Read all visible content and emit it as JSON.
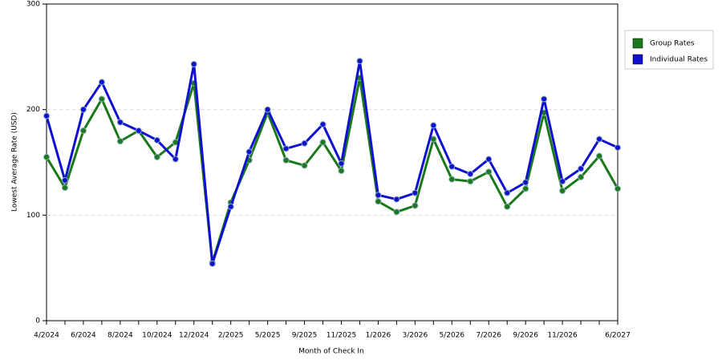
{
  "chart_data": {
    "type": "line",
    "x_label": "Month of Check In",
    "y_label": "Lowest Average Rate (USD)",
    "categories": [
      "4/2024",
      null,
      "6/2024",
      null,
      "8/2024",
      null,
      "10/2024",
      null,
      "12/2024",
      null,
      "2/2025",
      null,
      "5/2025",
      null,
      "9/2025",
      null,
      "11/2025",
      null,
      "1/2026",
      null,
      "3/2026",
      null,
      "5/2026",
      null,
      "7/2026",
      null,
      "9/2026",
      null,
      "11/2026",
      null,
      null,
      "6/2027"
    ],
    "series": [
      {
        "name": "Group Rates",
        "color": "#1a7a1a",
        "values": [
          155,
          126,
          180,
          210,
          170,
          180,
          155,
          169,
          225,
          55,
          112,
          152,
          197,
          152,
          147,
          169,
          142,
          230,
          113,
          103,
          109,
          172,
          134,
          132,
          141,
          108,
          125,
          197,
          123,
          136,
          156,
          125
        ]
      },
      {
        "name": "Individual Rates",
        "color": "#1010d0",
        "values": [
          194,
          133,
          200,
          226,
          188,
          180,
          171,
          153,
          243,
          54,
          108,
          160,
          200,
          163,
          168,
          186,
          149,
          246,
          119,
          115,
          121,
          185,
          146,
          139,
          153,
          121,
          131,
          210,
          132,
          144,
          172,
          164
        ]
      }
    ],
    "ylim": [
      0,
      300
    ],
    "yticks": [
      0,
      100,
      200,
      300
    ],
    "grid": true,
    "legend": "right"
  }
}
